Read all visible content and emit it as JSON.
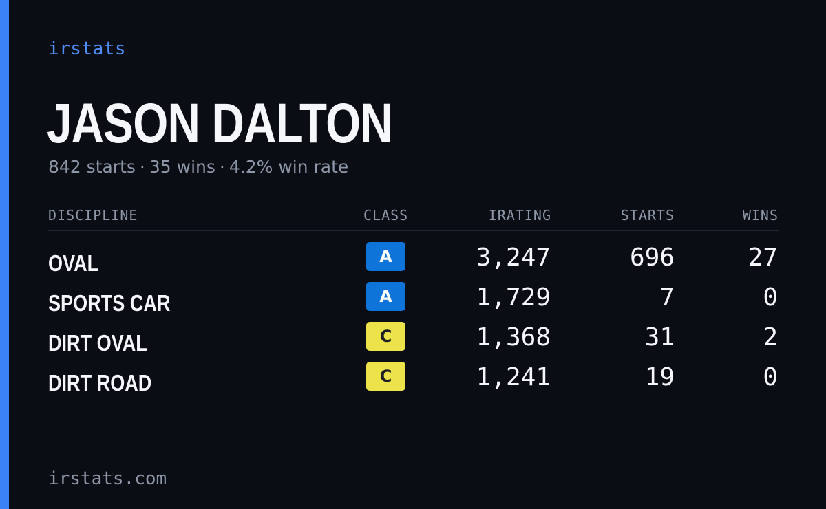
{
  "brand": "irstats",
  "driver": {
    "name": "JASON DALTON",
    "starts_summary": "842 starts",
    "wins_summary": "35 wins",
    "win_rate_summary": "4.2% win rate",
    "separator": "·"
  },
  "table": {
    "headers": {
      "discipline": "DISCIPLINE",
      "class": "CLASS",
      "irating": "IRATING",
      "starts": "STARTS",
      "wins": "WINS"
    },
    "rows": [
      {
        "discipline": "OVAL",
        "class": "A",
        "irating": "3,247",
        "starts": "696",
        "wins": "27"
      },
      {
        "discipline": "SPORTS CAR",
        "class": "A",
        "irating": "1,729",
        "starts": "7",
        "wins": "0"
      },
      {
        "discipline": "DIRT OVAL",
        "class": "C",
        "irating": "1,368",
        "starts": "31",
        "wins": "2"
      },
      {
        "discipline": "DIRT ROAD",
        "class": "C",
        "irating": "1,241",
        "starts": "19",
        "wins": "0"
      }
    ]
  },
  "footer": "irstats.com",
  "colors": {
    "background": "#0a0d14",
    "accent": "#3b82f6",
    "class_a": "#0f74d9",
    "class_c": "#ece24a"
  }
}
